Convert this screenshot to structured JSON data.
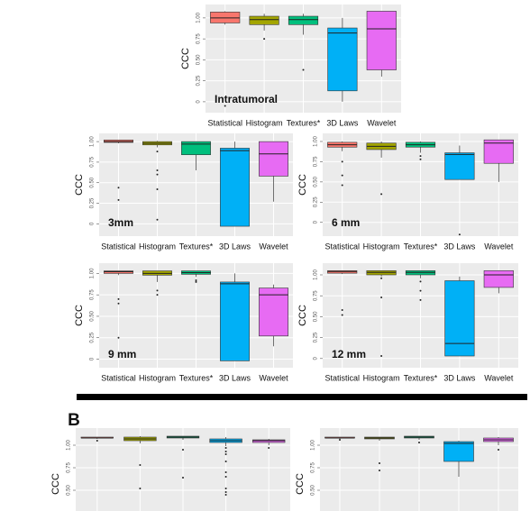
{
  "chart_data": [
    {
      "type": "box",
      "annotation": "Intratumoral",
      "ylabel": "CCC",
      "categories": [
        "Statistical",
        "Histogram",
        "Textures*",
        "3D Laws",
        "Wavelet"
      ],
      "ylim": [
        -0.13,
        1.16
      ],
      "yticks": [
        0,
        0.25,
        {
          "value": 0.5,
          "label": "0.50"
        },
        0.75,
        {
          "value": 1,
          "label": "1.00"
        }
      ],
      "boxes": [
        {
          "color": "#f8766d",
          "low": 0.92,
          "q1": 0.94,
          "median": 1.0,
          "q3": 1.07,
          "high": 1.08,
          "outliers": [
            -0.05
          ]
        },
        {
          "color": "#a3a500",
          "low": 0.85,
          "q1": 0.92,
          "median": 0.98,
          "q3": 1.02,
          "high": 1.05,
          "outliers": [
            0.75
          ]
        },
        {
          "color": "#00bf7d",
          "low": 0.8,
          "q1": 0.92,
          "median": 0.98,
          "q3": 1.02,
          "high": 1.05,
          "outliers": [
            0.38
          ]
        },
        {
          "color": "#00b0f6",
          "low": 0.0,
          "q1": 0.13,
          "median": 0.82,
          "q3": 0.88,
          "high": 1.0,
          "outliers": []
        },
        {
          "color": "#e76bf3",
          "low": 0.3,
          "q1": 0.38,
          "median": 0.87,
          "q3": 1.08,
          "high": 1.08,
          "outliers": []
        }
      ]
    },
    {
      "type": "box",
      "annotation": "3mm",
      "ylabel": "CCC",
      "categories": [
        "Statistical",
        "Histogram",
        "Textures*",
        "3D Laws",
        "Wavelet"
      ],
      "ylim": [
        -0.15,
        1.1
      ],
      "yticks": [
        0,
        0.25,
        {
          "value": 0.5,
          "label": "0.50"
        },
        0.75,
        {
          "value": 1,
          "label": "1.00"
        }
      ],
      "boxes": [
        {
          "color": "#f8766d",
          "low": 0.98,
          "q1": 0.99,
          "median": 1.0,
          "q3": 1.02,
          "high": 1.02,
          "outliers": [
            0.44,
            0.29
          ]
        },
        {
          "color": "#a3a500",
          "low": 0.93,
          "q1": 0.96,
          "median": 0.98,
          "q3": 1.0,
          "high": 1.01,
          "outliers": [
            0.88,
            0.65,
            0.6,
            0.42,
            0.05
          ]
        },
        {
          "color": "#00bf7d",
          "low": 0.65,
          "q1": 0.84,
          "median": 0.97,
          "q3": 1.0,
          "high": 1.0,
          "outliers": []
        },
        {
          "color": "#00b0f6",
          "low": -0.03,
          "q1": -0.03,
          "median": 0.89,
          "q3": 0.92,
          "high": 1.0,
          "outliers": []
        },
        {
          "color": "#e76bf3",
          "low": 0.27,
          "q1": 0.58,
          "median": 0.85,
          "q3": 1.0,
          "high": 1.0,
          "outliers": []
        }
      ]
    },
    {
      "type": "box",
      "annotation": "6 mm",
      "ylabel": "CCC",
      "categories": [
        "Statistical",
        "Histogram",
        "Textures*",
        "3D Laws",
        "Wavelet"
      ],
      "ylim": [
        -0.17,
        1.1
      ],
      "yticks": [
        0,
        0.25,
        {
          "value": 0.5,
          "label": "0.50"
        },
        0.75,
        {
          "value": 1,
          "label": "1.00"
        }
      ],
      "boxes": [
        {
          "color": "#f8766d",
          "low": 0.88,
          "q1": 0.93,
          "median": 0.96,
          "q3": 0.99,
          "high": 1.0,
          "outliers": [
            0.75,
            0.58,
            0.46
          ]
        },
        {
          "color": "#a3a500",
          "low": 0.8,
          "q1": 0.9,
          "median": 0.94,
          "q3": 0.98,
          "high": 1.0,
          "outliers": [
            0.35
          ]
        },
        {
          "color": "#00bf7d",
          "low": 0.86,
          "q1": 0.93,
          "median": 0.96,
          "q3": 0.99,
          "high": 1.0,
          "outliers": [
            0.82,
            0.78
          ]
        },
        {
          "color": "#00b0f6",
          "low": 0.53,
          "q1": 0.53,
          "median": 0.84,
          "q3": 0.86,
          "high": 0.95,
          "outliers": [
            -0.15
          ]
        },
        {
          "color": "#e76bf3",
          "low": 0.5,
          "q1": 0.73,
          "median": 0.98,
          "q3": 1.02,
          "high": 1.02,
          "outliers": []
        }
      ]
    },
    {
      "type": "box",
      "annotation": "9 mm",
      "ylabel": "CCC",
      "categories": [
        "Statistical",
        "Histogram",
        "Textures*",
        "3D Laws",
        "Wavelet"
      ],
      "ylim": [
        -0.1,
        1.12
      ],
      "yticks": [
        0,
        0.25,
        {
          "value": 0.5,
          "label": "0.50"
        },
        0.75,
        {
          "value": 1,
          "label": "1.00"
        }
      ],
      "boxes": [
        {
          "color": "#f8766d",
          "low": 0.98,
          "q1": 1.0,
          "median": 1.02,
          "q3": 1.03,
          "high": 1.03,
          "outliers": [
            0.7,
            0.65,
            0.25
          ]
        },
        {
          "color": "#a3a500",
          "low": 0.9,
          "q1": 0.98,
          "median": 1.0,
          "q3": 1.03,
          "high": 1.03,
          "outliers": [
            0.8,
            0.75
          ]
        },
        {
          "color": "#00bf7d",
          "low": 0.96,
          "q1": 0.99,
          "median": 1.01,
          "q3": 1.03,
          "high": 1.03,
          "outliers": [
            0.92,
            0.9
          ]
        },
        {
          "color": "#00b0f6",
          "low": -0.02,
          "q1": -0.02,
          "median": 0.88,
          "q3": 0.9,
          "high": 1.0,
          "outliers": []
        },
        {
          "color": "#e76bf3",
          "low": 0.15,
          "q1": 0.27,
          "median": 0.75,
          "q3": 0.83,
          "high": 0.87,
          "outliers": []
        }
      ]
    },
    {
      "type": "box",
      "annotation": "12 mm",
      "ylabel": "CCC",
      "categories": [
        "Statistical",
        "Histogram",
        "Textures*",
        "3D Laws",
        "Wavelet"
      ],
      "ylim": [
        -0.11,
        1.14
      ],
      "yticks": [
        0,
        0.25,
        {
          "value": 0.5,
          "label": "0.50"
        },
        0.75,
        {
          "value": 1,
          "label": "1.00"
        }
      ],
      "boxes": [
        {
          "color": "#f8766d",
          "low": 1.01,
          "q1": 1.02,
          "median": 1.04,
          "q3": 1.05,
          "high": 1.05,
          "outliers": [
            0.58,
            0.52
          ]
        },
        {
          "color": "#a3a500",
          "low": 0.98,
          "q1": 1.0,
          "median": 1.03,
          "q3": 1.05,
          "high": 1.05,
          "outliers": [
            0.96,
            0.73,
            0.03
          ]
        },
        {
          "color": "#00bf7d",
          "low": 0.96,
          "q1": 1.0,
          "median": 1.03,
          "q3": 1.05,
          "high": 1.05,
          "outliers": [
            0.92,
            0.81,
            0.7
          ]
        },
        {
          "color": "#00b0f6",
          "low": 0.03,
          "q1": 0.03,
          "median": 0.18,
          "q3": 0.93,
          "high": 0.98,
          "outliers": []
        },
        {
          "color": "#e76bf3",
          "low": 0.78,
          "q1": 0.85,
          "median": 1.0,
          "q3": 1.05,
          "high": 1.05,
          "outliers": []
        }
      ]
    },
    {
      "type": "box",
      "panel_label": "B",
      "ylabel": "CCC",
      "ylim": [
        0.27,
        1.19
      ],
      "yticks": [
        {
          "value": 0.5,
          "label": "0.50"
        },
        0.75,
        {
          "value": 1,
          "label": "1.00"
        }
      ],
      "boxes": [
        {
          "color": "#f8766d",
          "low": 1.07,
          "q1": 1.08,
          "median": 1.08,
          "q3": 1.09,
          "high": 1.09,
          "outliers": [
            1.05
          ]
        },
        {
          "color": "#a3a500",
          "low": 1.02,
          "q1": 1.05,
          "median": 1.07,
          "q3": 1.09,
          "high": 1.1,
          "outliers": [
            0.78,
            0.52
          ]
        },
        {
          "color": "#00bf7d",
          "low": 1.06,
          "q1": 1.08,
          "median": 1.09,
          "q3": 1.1,
          "high": 1.1,
          "outliers": [
            0.95,
            0.64
          ]
        },
        {
          "color": "#00b0f6",
          "low": 0.99,
          "q1": 1.03,
          "median": 1.05,
          "q3": 1.07,
          "high": 1.09,
          "outliers": [
            0.97,
            0.93,
            0.9,
            0.82,
            0.7,
            0.65,
            0.52,
            0.48,
            0.45
          ]
        },
        {
          "color": "#e76bf3",
          "low": 1.0,
          "q1": 1.03,
          "median": 1.05,
          "q3": 1.06,
          "high": 1.07,
          "outliers": [
            0.97
          ]
        }
      ]
    },
    {
      "type": "box",
      "ylabel": "CCC",
      "ylim": [
        0.27,
        1.19
      ],
      "yticks": [
        {
          "value": 0.5,
          "label": "0.50"
        },
        0.75,
        {
          "value": 1,
          "label": "1.00"
        }
      ],
      "boxes": [
        {
          "color": "#f8766d",
          "low": 1.07,
          "q1": 1.08,
          "median": 1.08,
          "q3": 1.09,
          "high": 1.09,
          "outliers": [
            1.06
          ]
        },
        {
          "color": "#a3a500",
          "low": 1.05,
          "q1": 1.07,
          "median": 1.08,
          "q3": 1.09,
          "high": 1.09,
          "outliers": [
            0.8,
            0.72
          ]
        },
        {
          "color": "#00bf7d",
          "low": 1.06,
          "q1": 1.08,
          "median": 1.09,
          "q3": 1.1,
          "high": 1.1,
          "outliers": [
            1.03
          ]
        },
        {
          "color": "#00b0f6",
          "low": 0.65,
          "q1": 0.82,
          "median": 1.02,
          "q3": 1.04,
          "high": 1.05,
          "outliers": []
        },
        {
          "color": "#e76bf3",
          "low": 1.0,
          "q1": 1.04,
          "median": 1.06,
          "q3": 1.08,
          "high": 1.09,
          "outliers": [
            0.95
          ]
        }
      ]
    }
  ]
}
